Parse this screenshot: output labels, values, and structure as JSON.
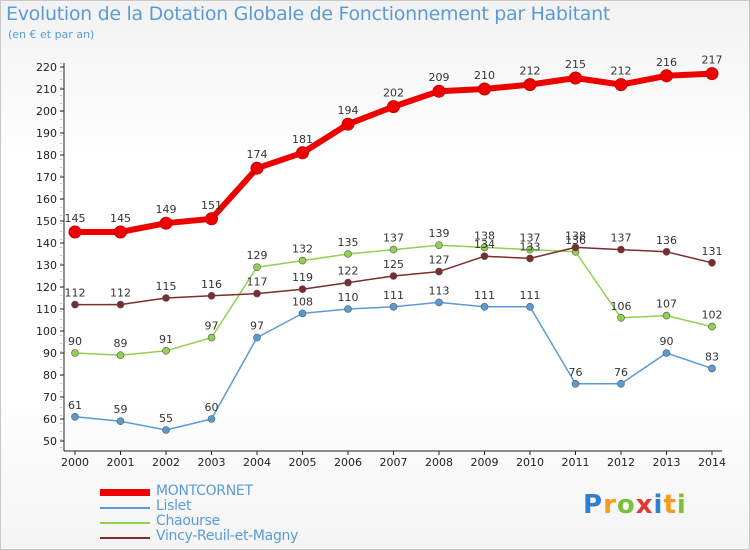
{
  "header": {
    "title": "Evolution de la Dotation Globale de Fonctionnement par Habitant",
    "subtitle": "(en € et par an)"
  },
  "logo": {
    "text": "Proxiti",
    "letters": [
      "P",
      "r",
      "o",
      "x",
      "i",
      "t",
      "i"
    ]
  },
  "chart_data": {
    "type": "line",
    "title": "Evolution de la Dotation Globale de Fonctionnement par Habitant",
    "subtitle": "(en € et par an)",
    "xlabel": "",
    "ylabel": "",
    "x": [
      "2000",
      "2001",
      "2002",
      "2003",
      "2004",
      "2005",
      "2006",
      "2007",
      "2008",
      "2009",
      "2010",
      "2011",
      "2012",
      "2013",
      "2014"
    ],
    "ylim": [
      50,
      220
    ],
    "yticks": [
      50,
      60,
      70,
      80,
      90,
      100,
      110,
      120,
      130,
      140,
      150,
      160,
      170,
      180,
      190,
      200,
      210,
      220
    ],
    "grid": false,
    "legend_position": "bottom-left",
    "series": [
      {
        "name": "MONTCORNET",
        "color": "#ee0000",
        "values": [
          145,
          145,
          149,
          151,
          174,
          181,
          194,
          202,
          209,
          210,
          212,
          215,
          212,
          216,
          217
        ]
      },
      {
        "name": "Lislet",
        "color": "#5b9bd5",
        "values": [
          61,
          59,
          55,
          60,
          97,
          108,
          110,
          111,
          113,
          111,
          111,
          76,
          76,
          90,
          83
        ]
      },
      {
        "name": "Chaourse",
        "color": "#92d050",
        "values": [
          90,
          89,
          91,
          97,
          129,
          132,
          135,
          137,
          139,
          138,
          137,
          136,
          106,
          107,
          102
        ]
      },
      {
        "name": "Vincy-Reuil-et-Magny",
        "color": "#7b2c2c",
        "values": [
          112,
          112,
          115,
          116,
          117,
          119,
          122,
          125,
          127,
          134,
          133,
          138,
          137,
          136,
          131
        ]
      }
    ],
    "data_labels": [
      [
        "145",
        "145",
        "149",
        "151",
        "174",
        "181",
        "194",
        "202",
        "209",
        "210",
        "212",
        "215",
        "212",
        "216",
        "217"
      ],
      [
        "61",
        "59",
        "55",
        "60",
        "97",
        "108",
        "110",
        "111",
        "113",
        "111",
        "111",
        "76",
        "76",
        "90",
        "83"
      ],
      [
        "90",
        "89",
        "91",
        "97",
        "129",
        "132",
        "135",
        "137",
        "139",
        "138",
        "137",
        "136",
        "106",
        "107",
        "102"
      ],
      [
        "112",
        "112",
        "115",
        "116",
        "117",
        "119",
        "122",
        "125",
        "127",
        "134",
        "133",
        "138",
        "137",
        "136",
        "131"
      ]
    ]
  }
}
